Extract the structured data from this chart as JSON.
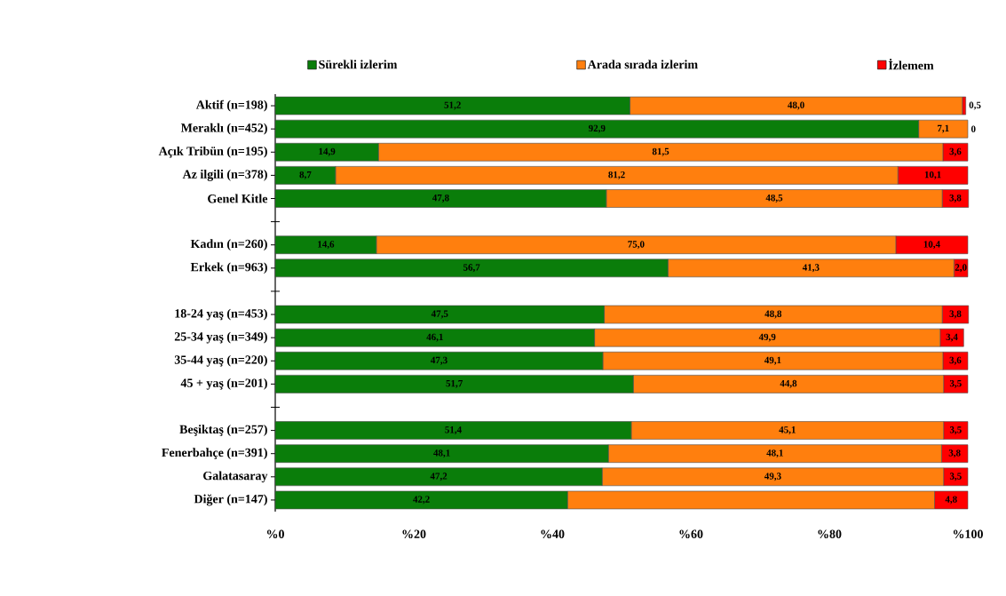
{
  "chart_data": {
    "type": "bar",
    "orientation": "horizontal",
    "stacked": true,
    "legend": "top",
    "categories": [
      "Aktif (n=198)",
      "Meraklı (n=452)",
      "Açık Tribün (n=195)",
      "Az ilgili (n=378)",
      "Genel Kitle",
      null,
      "Kadın (n=260)",
      "Erkek (n=963)",
      null,
      "18-24 yaş (n=453)",
      "25-34 yaş (n=349)",
      "35-44 yaş (n=220)",
      "45 + yaş (n=201)",
      null,
      "Beşiktaş (n=257)",
      "Fenerbahçe (n=391)",
      "Galatasaray",
      "Diğer (n=147)"
    ],
    "series": [
      {
        "name": "Sürekli izlerim",
        "color": "#0a7d0a",
        "values": [
          51.2,
          92.9,
          14.9,
          8.7,
          47.8,
          null,
          14.6,
          56.7,
          null,
          47.5,
          46.1,
          47.3,
          51.7,
          null,
          51.4,
          48.1,
          47.2,
          42.2
        ],
        "value_labels": [
          "51,2",
          "92,9",
          "14,9",
          "8,7",
          "47,8",
          null,
          "14,6",
          "56,7",
          null,
          "47,5",
          "46,1",
          "47,3",
          "51,7",
          null,
          "51,4",
          "48,1",
          "47,2",
          "42,2"
        ]
      },
      {
        "name": "Arada sırada izlerim",
        "color": "#ff7f0e",
        "values": [
          48.0,
          7.1,
          81.5,
          81.2,
          48.5,
          null,
          75.0,
          41.3,
          null,
          48.8,
          49.9,
          49.1,
          44.8,
          null,
          45.1,
          48.1,
          49.3,
          53.0
        ],
        "value_labels": [
          "48,0",
          "7,1",
          "81,5",
          "81,2",
          "48,5",
          null,
          "75,0",
          "41,3",
          null,
          "48,8",
          "49,9",
          "49,1",
          "44,8",
          null,
          "45,1",
          "48,1",
          "49,3",
          null
        ]
      },
      {
        "name": "İzlemem",
        "color": "#ff0000",
        "values": [
          0.5,
          0,
          3.6,
          10.1,
          3.8,
          null,
          10.4,
          2.0,
          null,
          3.8,
          3.4,
          3.6,
          3.5,
          null,
          3.5,
          3.8,
          3.5,
          4.8
        ],
        "value_labels": [
          "0,5",
          "0",
          "3,6",
          "10,1",
          "3,8",
          null,
          "10,4",
          "2,0",
          null,
          "3,8",
          "3,4",
          "3,6",
          "3,5",
          null,
          "3,5",
          "3,8",
          "3,5",
          "4,8"
        ]
      }
    ],
    "xlim": [
      0,
      100
    ],
    "xticks": [
      {
        "value": 0,
        "label": "%0"
      },
      {
        "value": 20,
        "label": "%20"
      },
      {
        "value": 40,
        "label": "%40"
      },
      {
        "value": 60,
        "label": "%60"
      },
      {
        "value": 80,
        "label": "%80"
      },
      {
        "value": 100,
        "label": "%100"
      }
    ]
  }
}
